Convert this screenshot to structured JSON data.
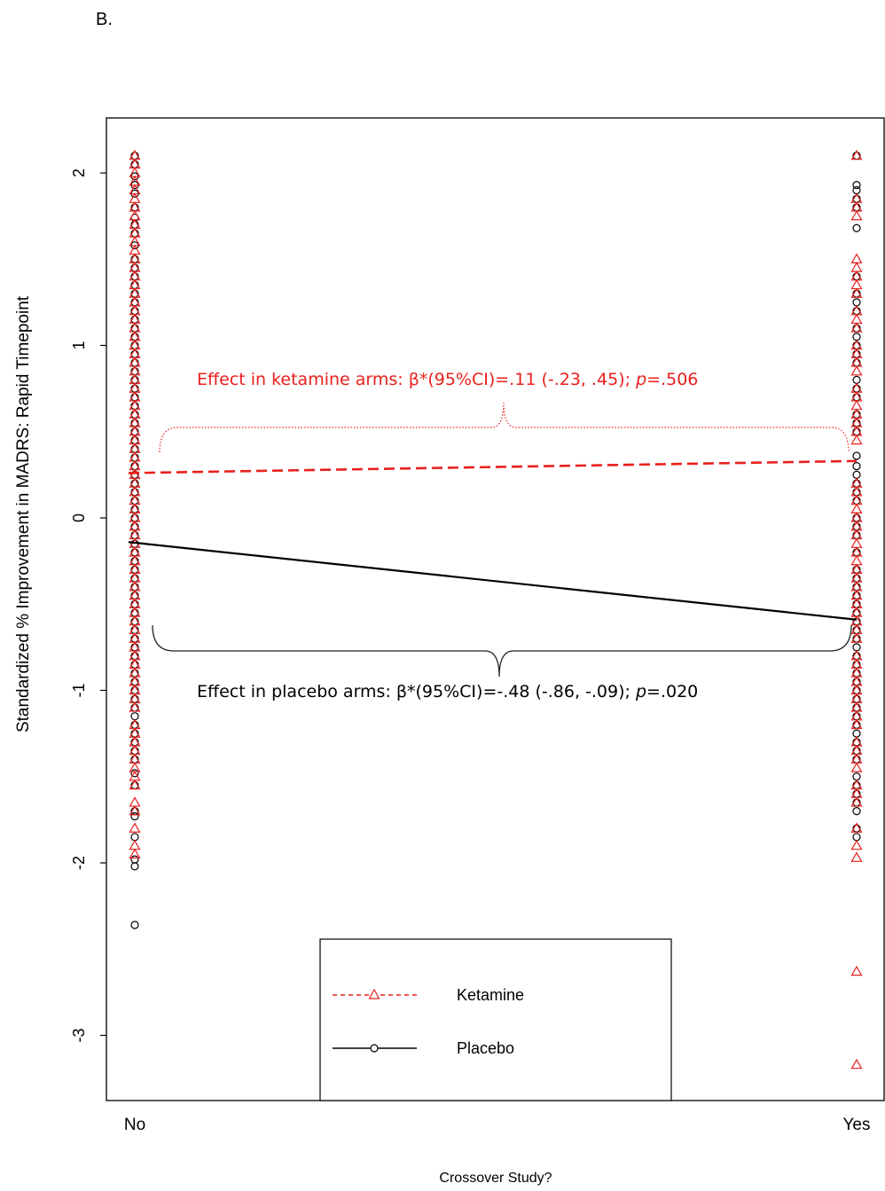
{
  "panel_label": "B.",
  "chart_data": {
    "type": "scatter",
    "title": "",
    "xlabel": "Crossover Study?",
    "ylabel": "Standardized % Improvement in MADRS: Rapid Timepoint",
    "categories": [
      "No",
      "Yes"
    ],
    "ylim": [
      -3.4,
      2.25
    ],
    "yticks": [
      "2",
      "1",
      "0",
      "-1",
      "-2",
      "-3"
    ],
    "ytick_values": [
      2,
      1,
      0,
      -1,
      -2,
      -3
    ],
    "grid": false,
    "legend_position": "bottom-center",
    "series": [
      {
        "name": "Ketamine",
        "marker": "triangle",
        "line_style": "dashed",
        "color": "#e8201c",
        "fit_line": {
          "No": 0.26,
          "Yes": 0.33
        },
        "values_no": [
          2.1,
          2.05,
          2.0,
          1.95,
          1.9,
          1.85,
          1.8,
          1.75,
          1.7,
          1.65,
          1.6,
          1.55,
          1.5,
          1.45,
          1.4,
          1.35,
          1.3,
          1.25,
          1.2,
          1.15,
          1.1,
          1.05,
          1.0,
          0.95,
          0.9,
          0.85,
          0.8,
          0.75,
          0.7,
          0.65,
          0.6,
          0.55,
          0.5,
          0.45,
          0.4,
          0.35,
          0.3,
          0.25,
          0.2,
          0.15,
          0.1,
          0.05,
          0.0,
          -0.05,
          -0.1,
          -0.15,
          -0.2,
          -0.25,
          -0.3,
          -0.35,
          -0.4,
          -0.45,
          -0.5,
          -0.55,
          -0.6,
          -0.65,
          -0.7,
          -0.75,
          -0.8,
          -0.85,
          -0.9,
          -0.95,
          -1.0,
          -1.05,
          -1.1,
          -1.2,
          -1.25,
          -1.3,
          -1.35,
          -1.4,
          -1.45,
          -1.5,
          -1.55,
          -1.65,
          -1.7,
          -1.8,
          -1.9,
          -1.95
        ],
        "values_yes": [
          2.1,
          1.85,
          1.8,
          1.75,
          1.5,
          1.45,
          1.4,
          1.35,
          1.3,
          1.2,
          1.15,
          1.1,
          1.0,
          0.95,
          0.9,
          0.85,
          0.75,
          0.7,
          0.65,
          0.6,
          0.55,
          0.5,
          0.45,
          0.2,
          0.15,
          0.1,
          0.05,
          0.0,
          -0.05,
          -0.1,
          -0.15,
          -0.2,
          -0.25,
          -0.3,
          -0.35,
          -0.4,
          -0.45,
          -0.5,
          -0.55,
          -0.6,
          -0.65,
          -0.7,
          -0.8,
          -0.85,
          -0.9,
          -0.95,
          -1.0,
          -1.05,
          -1.1,
          -1.15,
          -1.2,
          -1.3,
          -1.35,
          -1.4,
          -1.45,
          -1.55,
          -1.6,
          -1.65,
          -1.8,
          -1.9,
          -1.97,
          -2.63,
          -3.17
        ]
      },
      {
        "name": "Placebo",
        "marker": "circle",
        "line_style": "solid",
        "color": "#000000",
        "fit_line": {
          "No": -0.14,
          "Yes": -0.59
        },
        "values_no": [
          2.1,
          2.05,
          1.98,
          1.93,
          1.88,
          1.8,
          1.74,
          1.7,
          1.65,
          1.58,
          1.5,
          1.45,
          1.4,
          1.35,
          1.3,
          1.25,
          1.2,
          1.15,
          1.1,
          1.05,
          1.0,
          0.95,
          0.9,
          0.85,
          0.8,
          0.75,
          0.7,
          0.65,
          0.6,
          0.55,
          0.5,
          0.45,
          0.4,
          0.35,
          0.3,
          0.25,
          0.2,
          0.15,
          0.1,
          0.05,
          0.0,
          -0.05,
          -0.1,
          -0.15,
          -0.2,
          -0.25,
          -0.3,
          -0.35,
          -0.4,
          -0.45,
          -0.5,
          -0.55,
          -0.6,
          -0.65,
          -0.7,
          -0.75,
          -0.8,
          -0.85,
          -0.9,
          -0.95,
          -1.0,
          -1.05,
          -1.1,
          -1.15,
          -1.2,
          -1.25,
          -1.3,
          -1.35,
          -1.4,
          -1.48,
          -1.55,
          -1.7,
          -1.73,
          -1.85,
          -1.98,
          -2.02,
          -2.36
        ],
        "values_yes": [
          2.1,
          1.93,
          1.9,
          1.85,
          1.8,
          1.68,
          1.4,
          1.3,
          1.25,
          1.2,
          1.1,
          1.05,
          1.0,
          0.95,
          0.9,
          0.8,
          0.75,
          0.7,
          0.6,
          0.55,
          0.5,
          0.36,
          0.3,
          0.25,
          0.2,
          0.15,
          0.1,
          0.0,
          -0.05,
          -0.1,
          -0.2,
          -0.3,
          -0.35,
          -0.4,
          -0.45,
          -0.5,
          -0.55,
          -0.6,
          -0.65,
          -0.7,
          -0.75,
          -0.8,
          -0.85,
          -0.9,
          -0.95,
          -1.0,
          -1.05,
          -1.1,
          -1.15,
          -1.2,
          -1.25,
          -1.3,
          -1.35,
          -1.4,
          -1.5,
          -1.55,
          -1.6,
          -1.65,
          -1.7,
          -1.8,
          -1.85
        ]
      }
    ],
    "annotations": [
      {
        "id": "ketamine",
        "prefix": "Effect in ketamine arms: β*(95%CI)=.11 (-.23, .45); ",
        "p_label": "p",
        "suffix": "=.506",
        "color": "#e8201c",
        "brace_style": "dotted",
        "brace_direction": "up"
      },
      {
        "id": "placebo",
        "prefix": "Effect in placebo arms: β*(95%CI)=-.48 (-.86, -.09); ",
        "p_label": "p",
        "suffix": "=.020",
        "color": "#000000",
        "brace_style": "solid",
        "brace_direction": "down"
      }
    ]
  }
}
